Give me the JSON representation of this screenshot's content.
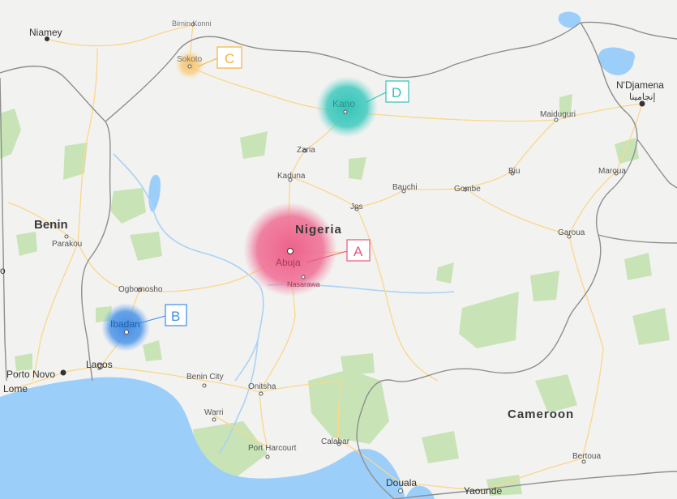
{
  "map": {
    "countries": {
      "nigeria": "Nigeria",
      "benin": "Benin",
      "cameroon": "Cameroon"
    },
    "cities": {
      "niamey": "Niamey",
      "birnin_konni": "Birnin Konni",
      "sokoto": "Sokoto",
      "kano": "Kano",
      "ndjamena": "N'Djamena",
      "ndjamena_ar": "إنجامينا",
      "maiduguri": "Maiduguri",
      "zaria": "Zaria",
      "kaduna": "Kaduna",
      "bauchi": "Bauchi",
      "gombe": "Gombe",
      "biu": "Biu",
      "maroua": "Maroua",
      "jos": "Jos",
      "garoua": "Garoua",
      "parakou": "Parakou",
      "abuja": "Abuja",
      "nasarawa": "Nasarawa",
      "ogbomosho": "Ogbomosho",
      "ibadan": "Ibadan",
      "lagos": "Lagos",
      "porto_novo": "Porto Novo",
      "lome": "Lome",
      "benin_city": "Benin City",
      "onitsha": "Onitsha",
      "warri": "Warri",
      "port_harcourt": "Port Harcourt",
      "calabar": "Calabar",
      "douala": "Douala",
      "yaounde": "Yaounde",
      "bertoua": "Bertoua",
      "edge_o": "o"
    },
    "markers": [
      {
        "letter": "A",
        "city": "Abuja",
        "color": "#e9577f"
      },
      {
        "letter": "B",
        "city": "Ibadan",
        "color": "#3d8ee6"
      },
      {
        "letter": "C",
        "city": "Sokoto",
        "color": "#f3b43a"
      },
      {
        "letter": "D",
        "city": "Kano",
        "color": "#2ec4b6"
      }
    ],
    "colors": {
      "land": "#f2f2f1",
      "water": "#9ccefa",
      "park": "#c5e3b4",
      "road": "#fbd78a",
      "border": "#8a8a8a"
    }
  }
}
